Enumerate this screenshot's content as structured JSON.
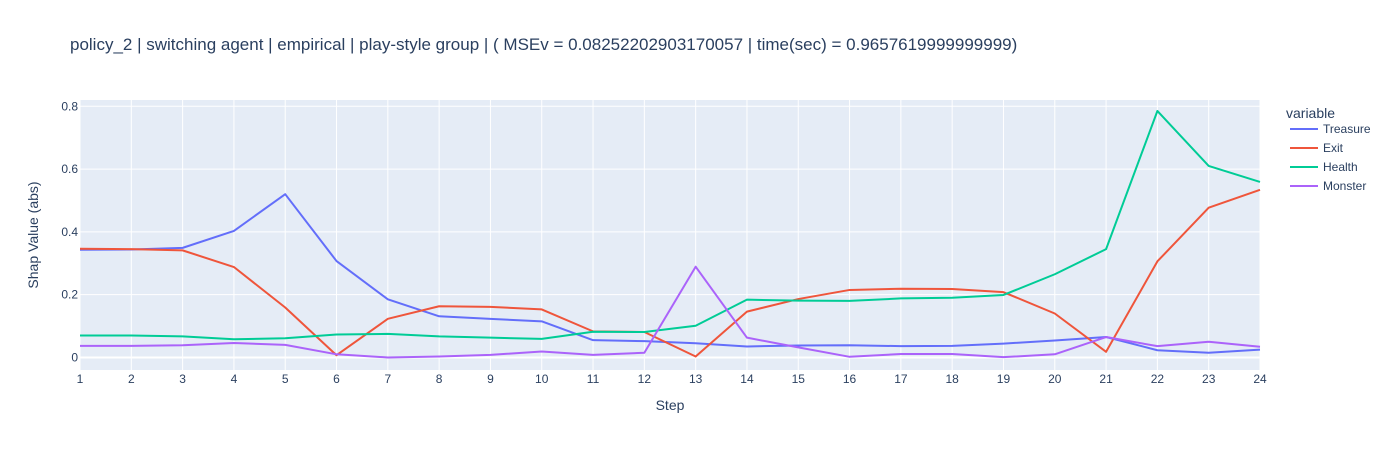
{
  "chart_data": {
    "type": "line",
    "title": "policy_2 | switching agent | empirical | play-style group |  ( MSEv = 0.08252202903170057 | time(sec) = 0.9657619999999999)",
    "xlabel": "Step",
    "ylabel": "Shap Value (abs)",
    "xlim": [
      1,
      24
    ],
    "ylim": [
      -0.04,
      0.82
    ],
    "x_ticks": [
      1,
      2,
      3,
      4,
      5,
      6,
      7,
      8,
      9,
      10,
      11,
      12,
      13,
      14,
      15,
      16,
      17,
      18,
      19,
      20,
      21,
      22,
      23,
      24
    ],
    "y_ticks": [
      0,
      0.2,
      0.4,
      0.6,
      0.8
    ],
    "y_tick_labels": [
      "0",
      "0.2",
      "0.4",
      "0.6",
      "0.8"
    ],
    "legend_title": "variable",
    "legend_position": "right",
    "grid": true,
    "plot_bg": "#e5ecf6",
    "x": [
      1,
      2,
      3,
      4,
      5,
      6,
      7,
      8,
      9,
      10,
      11,
      12,
      13,
      14,
      15,
      16,
      17,
      18,
      19,
      20,
      21,
      22,
      23,
      24
    ],
    "series": [
      {
        "name": "Treasure",
        "color": "#636efa",
        "values": [
          0.343,
          0.344,
          0.349,
          0.403,
          0.52,
          0.307,
          0.185,
          0.131,
          0.123,
          0.115,
          0.055,
          0.052,
          0.045,
          0.035,
          0.038,
          0.039,
          0.036,
          0.037,
          0.044,
          0.054,
          0.065,
          0.023,
          0.015,
          0.025
        ]
      },
      {
        "name": "Exit",
        "color": "#ef553b",
        "values": [
          0.346,
          0.345,
          0.341,
          0.288,
          0.159,
          0.007,
          0.123,
          0.163,
          0.161,
          0.153,
          0.083,
          0.081,
          0.003,
          0.146,
          0.186,
          0.215,
          0.219,
          0.218,
          0.208,
          0.14,
          0.018,
          0.306,
          0.477,
          0.534
        ]
      },
      {
        "name": "Health",
        "color": "#00cc96",
        "values": [
          0.07,
          0.07,
          0.067,
          0.058,
          0.061,
          0.073,
          0.075,
          0.067,
          0.063,
          0.059,
          0.082,
          0.081,
          0.101,
          0.184,
          0.181,
          0.18,
          0.188,
          0.19,
          0.199,
          0.265,
          0.345,
          0.785,
          0.61,
          0.559
        ]
      },
      {
        "name": "Monster",
        "color": "#ab63fa",
        "values": [
          0.037,
          0.037,
          0.039,
          0.046,
          0.04,
          0.01,
          0.0,
          0.003,
          0.008,
          0.019,
          0.008,
          0.015,
          0.289,
          0.063,
          0.032,
          0.002,
          0.011,
          0.011,
          0.001,
          0.01,
          0.065,
          0.036,
          0.05,
          0.034
        ]
      }
    ]
  }
}
